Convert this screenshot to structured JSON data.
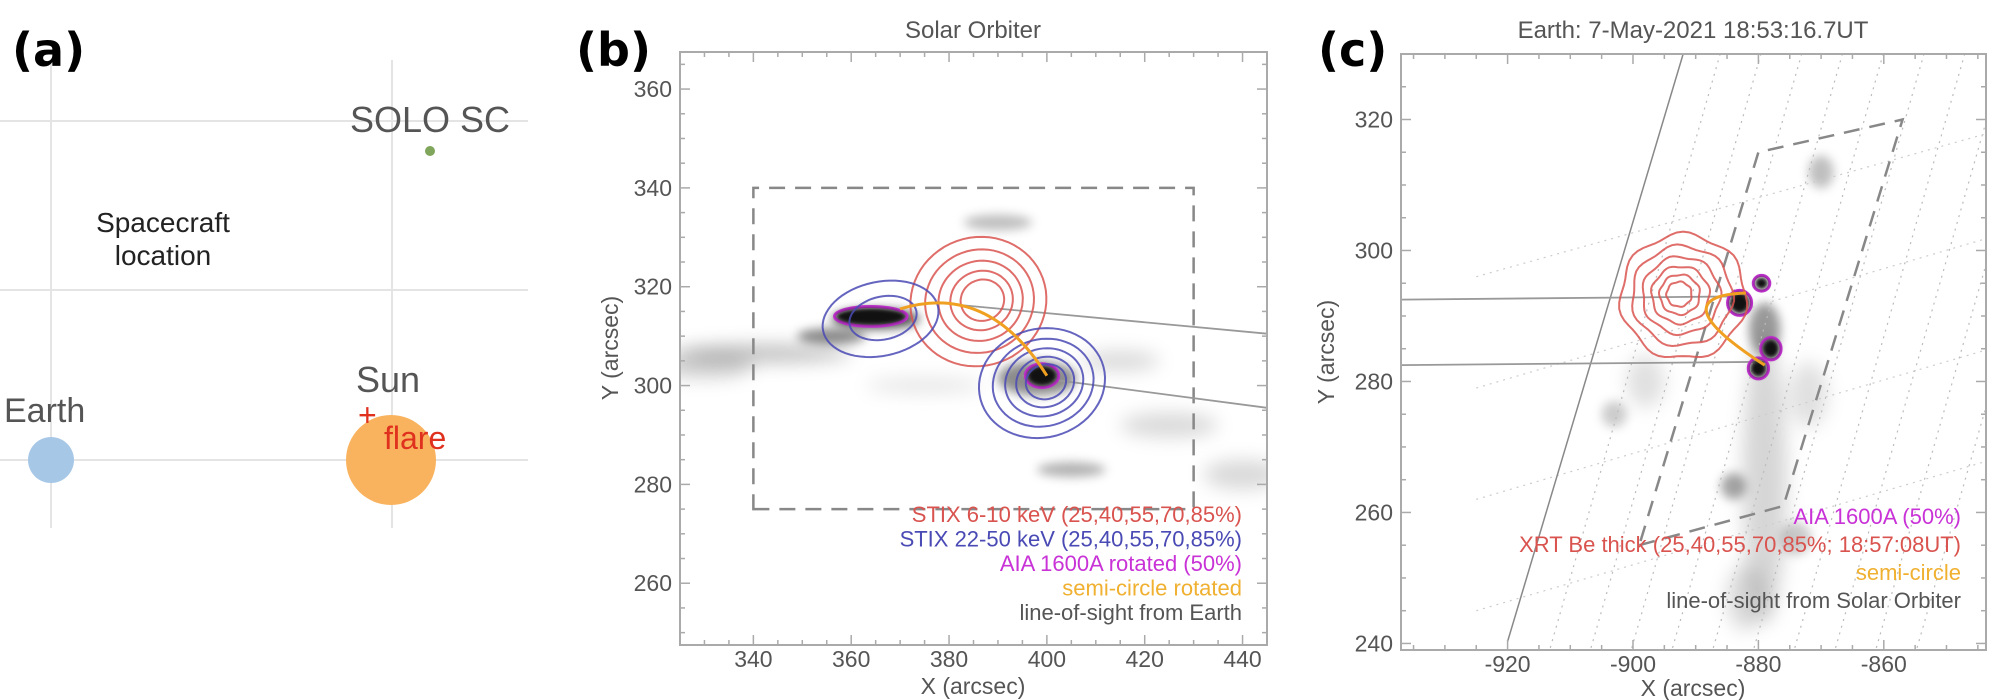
{
  "panel_a": {
    "label": "(a)",
    "spacecraft": "SOLO SC",
    "caption_line1": "Spacecraft",
    "caption_line2": "location",
    "sun": "Sun",
    "earth": "Earth",
    "flare_marker": "+",
    "flare": "flare",
    "colors": {
      "earth": "#a7c7e7",
      "sun": "#f9b35f",
      "spacecraft": "#7fa65a",
      "flare": "#e0301e",
      "grid": "#e4e4e4"
    }
  },
  "chart_data": [
    {
      "panel": "(b)",
      "type": "heatmap",
      "title": "Solar Orbiter",
      "xlabel": "X (arcsec)",
      "ylabel": "Y (arcsec)",
      "xlim": [
        325,
        445
      ],
      "ylim": [
        247.5,
        367.5
      ],
      "xticks": [
        340,
        360,
        380,
        400,
        420,
        440
      ],
      "yticks": [
        260,
        280,
        300,
        320,
        340,
        360
      ],
      "legend_position": "bottom-right",
      "legend": [
        {
          "text": "STIX 6-10 keV (25,40,55,70,85%)",
          "color": "#d9534f"
        },
        {
          "text": "STIX 22-50 keV (25,40,55,70,85%)",
          "color": "#4a4ab5"
        },
        {
          "text": "AIA 1600A rotated (50%)",
          "color": "#c832d6"
        },
        {
          "text": "semi-circle rotated",
          "color": "#f0b030"
        },
        {
          "text": "line-of-sight from Earth",
          "color": "#555555"
        }
      ],
      "dashed_box": [
        [
          340,
          275
        ],
        [
          430,
          275
        ],
        [
          430,
          340
        ],
        [
          340,
          340
        ]
      ],
      "contours": [
        {
          "series": "STIX 6-10 keV",
          "color": "#d9534f",
          "center": [
            386,
            317
          ],
          "rx": 14,
          "ry": 13,
          "rotation": -20,
          "levels": [
            25,
            40,
            55,
            70,
            85
          ]
        },
        {
          "series": "STIX 22-50 keV",
          "color": "#4a4ab5",
          "center": [
            366,
            313.5
          ],
          "rx": 12,
          "ry": 7.5,
          "rotation": -12,
          "levels": [
            25,
            40
          ]
        },
        {
          "series": "STIX 22-50 keV",
          "color": "#4a4ab5",
          "center": [
            399,
            300.5
          ],
          "rx": 13,
          "ry": 11,
          "rotation": -15,
          "levels": [
            25,
            40,
            55,
            70,
            85
          ]
        }
      ],
      "aia_sources": [
        [
          364,
          314,
          7,
          1.6
        ],
        [
          399,
          302,
          3,
          2
        ]
      ],
      "semicircle": [
        [
          370,
          315.5
        ],
        [
          388,
          321
        ],
        [
          400,
          302
        ]
      ],
      "line_of_sight": [
        [
          [
            380,
            316.5
          ],
          [
            445,
            310.5
          ]
        ],
        [
          [
            395,
            302
          ],
          [
            445,
            295.5
          ]
        ]
      ]
    },
    {
      "panel": "(c)",
      "type": "heatmap",
      "title": "Earth:  7-May-2021 18:53:16.7UT",
      "xlabel": "X (arcsec)",
      "ylabel": "Y (arcsec)",
      "xlim": [
        -937,
        -843.7
      ],
      "ylim": [
        239,
        330
      ],
      "xticks": [
        -920,
        -900,
        -880,
        -860
      ],
      "yticks": [
        240,
        260,
        280,
        300,
        320
      ],
      "legend_position": "bottom-right",
      "legend": [
        {
          "text": "AIA 1600A (50%)",
          "color": "#c832d6"
        },
        {
          "text": "XRT Be thick (25,40,55,70,85%; 18:57:08UT)",
          "color": "#d9534f"
        },
        {
          "text": "semi-circle",
          "color": "#f0b030"
        },
        {
          "text": "line-of-sight from Solar Orbiter",
          "color": "#555555"
        }
      ],
      "dashed_box": [
        [
          -899,
          255
        ],
        [
          -876,
          261
        ],
        [
          -857,
          320
        ],
        [
          -880,
          315
        ]
      ],
      "contours": [
        {
          "series": "XRT Be thick",
          "color": "#d9534f",
          "center": [
            -892,
            293
          ],
          "rx": 10,
          "ry": 9.5,
          "rotation": 0,
          "levels": [
            25,
            40,
            55,
            70,
            85
          ]
        }
      ],
      "aia_sources": [
        [
          -883,
          292,
          1.6,
          1.6
        ],
        [
          -878,
          285,
          1.3,
          1.4
        ],
        [
          -880,
          282,
          1.3,
          1.3
        ],
        [
          -879.5,
          295,
          1,
          0.9
        ]
      ],
      "semicircle": [
        [
          -882,
          293.5
        ],
        [
          -896,
          293
        ],
        [
          -879,
          282.5
        ]
      ],
      "line_of_sight": [
        [
          [
            -937,
            292.5
          ],
          [
            -882,
            293
          ]
        ],
        [
          [
            -937,
            282.5
          ],
          [
            -879,
            283
          ]
        ]
      ],
      "limb": [
        [
          -920,
          240.3
        ],
        [
          -892,
          330
        ]
      ]
    }
  ]
}
